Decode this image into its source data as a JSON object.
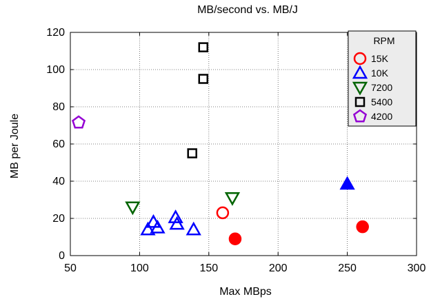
{
  "chart_data": {
    "type": "scatter",
    "title": "MB/second vs. MB/J",
    "xlabel": "Max MBps",
    "ylabel": "MB per Joule",
    "xlim": [
      50,
      300
    ],
    "ylim": [
      0,
      120
    ],
    "xticks": [
      "50",
      "100",
      "150",
      "200",
      "250",
      "300"
    ],
    "yticks": [
      "0",
      "20",
      "40",
      "60",
      "80",
      "100",
      "120"
    ],
    "grid": true,
    "legend_title": "RPM",
    "legend_position": "top-right",
    "series": [
      {
        "name": "15K",
        "marker": "circle",
        "color": "#ff0000",
        "points": [
          {
            "x": 160,
            "y": 23,
            "filled": false
          },
          {
            "x": 169,
            "y": 9,
            "filled": true
          },
          {
            "x": 261,
            "y": 15.5,
            "filled": true
          }
        ]
      },
      {
        "name": "10K",
        "marker": "triangle-up",
        "color": "#0000ff",
        "points": [
          {
            "x": 106,
            "y": 14,
            "filled": false
          },
          {
            "x": 110,
            "y": 18,
            "filled": false
          },
          {
            "x": 113,
            "y": 15,
            "filled": false
          },
          {
            "x": 126,
            "y": 20.5,
            "filled": false
          },
          {
            "x": 127,
            "y": 17,
            "filled": false
          },
          {
            "x": 139,
            "y": 14,
            "filled": false
          },
          {
            "x": 250,
            "y": 38.5,
            "filled": true
          }
        ]
      },
      {
        "name": "7200",
        "marker": "triangle-down",
        "color": "#006400",
        "points": [
          {
            "x": 95,
            "y": 26,
            "filled": false
          },
          {
            "x": 167,
            "y": 31,
            "filled": false
          }
        ]
      },
      {
        "name": "5400",
        "marker": "square",
        "color": "#000000",
        "points": [
          {
            "x": 146,
            "y": 112,
            "filled": false
          },
          {
            "x": 146,
            "y": 95,
            "filled": false
          },
          {
            "x": 138,
            "y": 55,
            "filled": false
          }
        ]
      },
      {
        "name": "4200",
        "marker": "pentagon",
        "color": "#9400d3",
        "points": [
          {
            "x": 56,
            "y": 71.5,
            "filled": false
          }
        ]
      }
    ]
  }
}
